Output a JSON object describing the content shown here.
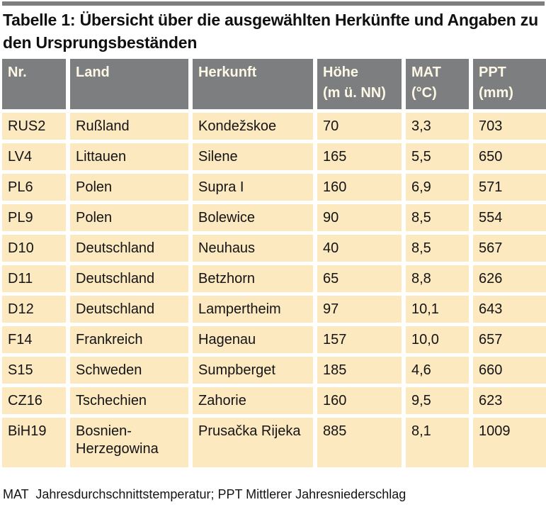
{
  "title": "Tabelle 1: Übersicht über die ausgewählten Herkünfte und Angaben zu den Ursprungsbeständen",
  "table": {
    "columns": [
      {
        "label": "Nr.",
        "sublabel": ""
      },
      {
        "label": "Land",
        "sublabel": ""
      },
      {
        "label": "Herkunft",
        "sublabel": ""
      },
      {
        "label": "Höhe",
        "sublabel": "(m ü. NN)"
      },
      {
        "label": "MAT",
        "sublabel": "(°C)"
      },
      {
        "label": "PPT",
        "sublabel": "(mm)"
      }
    ],
    "rows": [
      {
        "nr": "RUS2",
        "land": "Rußland",
        "herkunft": "Kondežskoe",
        "hoehe": "70",
        "mat": "3,3",
        "ppt": "703"
      },
      {
        "nr": "LV4",
        "land": "Littauen",
        "herkunft": "Silene",
        "hoehe": "165",
        "mat": "5,5",
        "ppt": "650"
      },
      {
        "nr": "PL6",
        "land": "Polen",
        "herkunft": "Supra  I",
        "hoehe": "160",
        "mat": "6,9",
        "ppt": "571"
      },
      {
        "nr": "PL9",
        "land": "Polen",
        "herkunft": "Bolewice",
        "hoehe": "90",
        "mat": "8,5",
        "ppt": "554"
      },
      {
        "nr": "D10",
        "land": "Deutschland",
        "herkunft": "Neuhaus",
        "hoehe": "40",
        "mat": "8,5",
        "ppt": "567"
      },
      {
        "nr": "D11",
        "land": "Deutschland",
        "herkunft": "Betzhorn",
        "hoehe": "65",
        "mat": "8,8",
        "ppt": "626"
      },
      {
        "nr": "D12",
        "land": "Deutschland",
        "herkunft": "Lampertheim",
        "hoehe": "97",
        "mat": "10,1",
        "ppt": "643"
      },
      {
        "nr": "F14",
        "land": "Frankreich",
        "herkunft": "Hagenau",
        "hoehe": "157",
        "mat": "10,0",
        "ppt": "657"
      },
      {
        "nr": "S15",
        "land": "Schweden",
        "herkunft": "Sumpberget",
        "hoehe": "185",
        "mat": "4,6",
        "ppt": "660"
      },
      {
        "nr": "CZ16",
        "land": "Tschechien",
        "herkunft": "Zahorie",
        "hoehe": "160",
        "mat": "9,5",
        "ppt": "623"
      },
      {
        "nr": "BiH19",
        "land": "Bosnien-Herzegowina",
        "herkunft": "Prusačka Rijeka",
        "hoehe": "885",
        "mat": "8,1",
        "ppt": "1009"
      }
    ]
  },
  "footnote": "MAT  Jahresdurchschnittstemperatur; PPT Mittlerer Jahresniederschlag",
  "colors": {
    "top_bar": "#7c7e80",
    "header_bg": "#7c7e80",
    "header_text": "#fdf7e6",
    "row_bg": "#fce9c0",
    "body_text": "#141414"
  }
}
